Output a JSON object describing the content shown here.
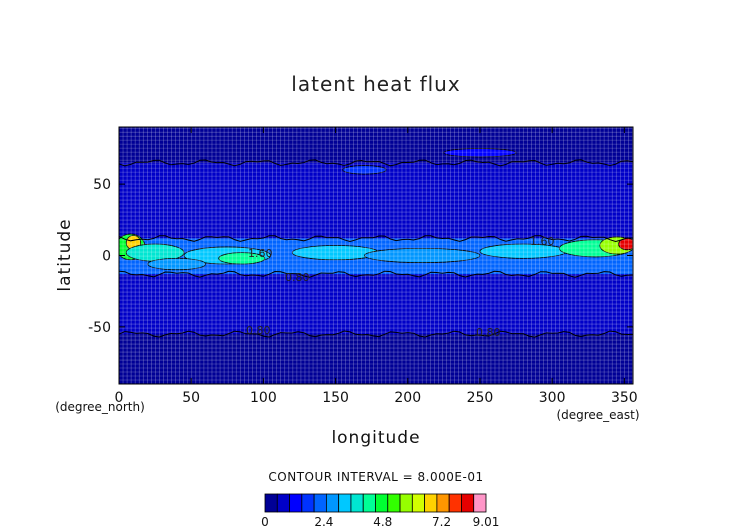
{
  "chart_data": {
    "type": "heatmap",
    "title": "latent heat flux",
    "xlabel": "longitude",
    "ylabel": "latitude",
    "x_unit": "(degree_east)",
    "y_unit": "(degree_north)",
    "xlim": [
      0,
      356
    ],
    "ylim": [
      -90,
      90
    ],
    "xticks": [
      0,
      50,
      100,
      150,
      200,
      250,
      300,
      350
    ],
    "yticks": [
      -50,
      0,
      50
    ],
    "grid": true,
    "contour_interval_label": "CONTOUR INTERVAL = 8.000E-01",
    "contour_labels": [
      "1.60",
      "0.80",
      "1.60",
      "0.80",
      "0.80"
    ],
    "colorbar": {
      "min": 0,
      "max": 9.01,
      "ticks": [
        "0",
        "2.4",
        "4.8",
        "7.2",
        "9.01"
      ],
      "colors": [
        "#000096",
        "#0000c8",
        "#0000ff",
        "#0032ff",
        "#0064ff",
        "#0096ff",
        "#00c8ff",
        "#00e6d2",
        "#00ff96",
        "#00ff32",
        "#32ff00",
        "#96ff00",
        "#d2ff00",
        "#ffd200",
        "#ff9600",
        "#ff3200",
        "#e60000",
        "#ff96c8"
      ]
    },
    "field_summary": [
      {
        "lat_range": [
          -90,
          -55
        ],
        "level": 0.2
      },
      {
        "lat_range": [
          -55,
          -13
        ],
        "level": 0.8
      },
      {
        "lat_range": [
          -13,
          12
        ],
        "level": 2.4
      },
      {
        "lat_range": [
          12,
          65
        ],
        "level": 0.9
      },
      {
        "lat_range": [
          65,
          90
        ],
        "level": 0.5
      }
    ]
  }
}
